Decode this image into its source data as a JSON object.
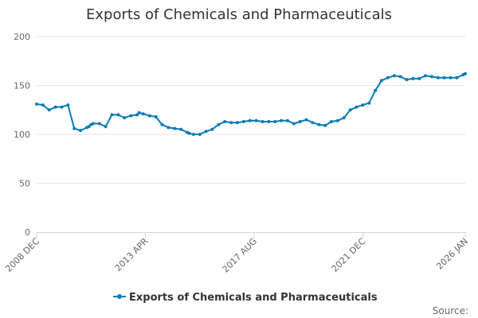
{
  "chart_data": {
    "type": "line",
    "title": "Exports of Chemicals and Pharmaceuticals",
    "xlabel": "",
    "ylabel": "",
    "ylim": [
      0,
      200
    ],
    "yticks": [
      "0",
      "50",
      "100",
      "150",
      "200"
    ],
    "xticks": [
      "2008 DEC",
      "2013 APR",
      "2017 AUG",
      "2021 DEC",
      "2026 JAN"
    ],
    "grid": true,
    "legend_position": "bottom",
    "source_label": "Source:",
    "color": "#0a7ab5",
    "series": [
      {
        "name": "Exports of Chemicals and Pharmaceuticals",
        "x": [
          "2008 DEC",
          "2009 MAR",
          "2009 JUN",
          "2009 SEP",
          "2009 DEC",
          "2010 MAR",
          "2010 JUN",
          "2010 SEP",
          "2010 DEC",
          "2011 JAN",
          "2011 FEB",
          "2011 MAR",
          "2011 JUN",
          "2011 SEP",
          "2011 DEC",
          "2012 MAR",
          "2012 JUN",
          "2012 SEP",
          "2012 DEC",
          "2013 JAN",
          "2013 MAR",
          "2013 JUN",
          "2013 SEP",
          "2013 DEC",
          "2014 MAR",
          "2014 JUN",
          "2014 SEP",
          "2014 DEC",
          "2015 JAN",
          "2015 MAR",
          "2015 JUN",
          "2015 SEP",
          "2015 DEC",
          "2016 MAR",
          "2016 JUN",
          "2016 SEP",
          "2016 DEC",
          "2017 MAR",
          "2017 JUN",
          "2017 SEP",
          "2017 DEC",
          "2018 MAR",
          "2018 JUN",
          "2018 SEP",
          "2018 DEC",
          "2019 MAR",
          "2019 JUN",
          "2019 SEP",
          "2019 DEC",
          "2020 MAR",
          "2020 JUN",
          "2020 SEP",
          "2020 DEC",
          "2021 MAR",
          "2021 JUN",
          "2021 SEP",
          "2021 DEC",
          "2022 MAR",
          "2022 JUN",
          "2022 SEP",
          "2022 DEC",
          "2023 MAR",
          "2023 JUN",
          "2023 SEP",
          "2023 DEC",
          "2024 MAR",
          "2024 JUN",
          "2024 SEP",
          "2024 DEC",
          "2025 MAR",
          "2025 JUN",
          "2025 SEP",
          "2025 DEC",
          "2026 JAN"
        ],
        "values": [
          131,
          130,
          125,
          128,
          128,
          130,
          106,
          104,
          107,
          108,
          110,
          111,
          111,
          108,
          120,
          120,
          117,
          119,
          120,
          122,
          121,
          119,
          118,
          110,
          107,
          106,
          105,
          102,
          101,
          100,
          100,
          103,
          105,
          110,
          113,
          112,
          112,
          113,
          114,
          114,
          113,
          113,
          113,
          114,
          114,
          111,
          113,
          115,
          112,
          110,
          109,
          113,
          114,
          117,
          125,
          128,
          130,
          132,
          145,
          155,
          158,
          160,
          159,
          156,
          157,
          157,
          160,
          159,
          158,
          158,
          158,
          158,
          161,
          162
        ]
      }
    ]
  }
}
